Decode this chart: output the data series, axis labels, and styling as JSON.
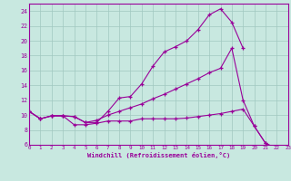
{
  "xlabel": "Windchill (Refroidissement éolien,°C)",
  "xlim": [
    0,
    23
  ],
  "ylim": [
    6,
    25
  ],
  "xticks": [
    0,
    1,
    2,
    3,
    4,
    5,
    6,
    7,
    8,
    9,
    10,
    11,
    12,
    13,
    14,
    15,
    16,
    17,
    18,
    19,
    20,
    21,
    22,
    23
  ],
  "yticks": [
    6,
    8,
    10,
    12,
    14,
    16,
    18,
    20,
    22,
    24
  ],
  "bg_color": "#c8e8e0",
  "grid_color": "#a0c8c0",
  "line_color": "#990099",
  "line1_y": [
    10.5,
    9.5,
    9.9,
    9.9,
    9.8,
    9.0,
    9.0,
    10.5,
    12.3,
    12.5,
    14.2,
    16.6,
    18.5,
    19.2,
    20.0,
    21.5,
    23.5,
    24.3,
    22.5,
    19.0,
    null,
    null,
    null,
    null
  ],
  "line2_y": [
    10.5,
    9.5,
    9.9,
    9.9,
    9.8,
    9.0,
    9.3,
    10.0,
    10.5,
    11.0,
    11.5,
    12.2,
    12.8,
    13.5,
    14.2,
    14.9,
    15.7,
    16.3,
    19.0,
    12.0,
    8.5,
    6.2,
    5.5,
    5.2
  ],
  "line3_y": [
    10.5,
    9.5,
    9.9,
    9.9,
    8.7,
    8.7,
    8.9,
    9.2,
    9.2,
    9.2,
    9.5,
    9.5,
    9.5,
    9.5,
    9.6,
    9.8,
    10.0,
    10.2,
    10.5,
    10.8,
    8.5,
    6.2,
    5.5,
    5.2
  ]
}
